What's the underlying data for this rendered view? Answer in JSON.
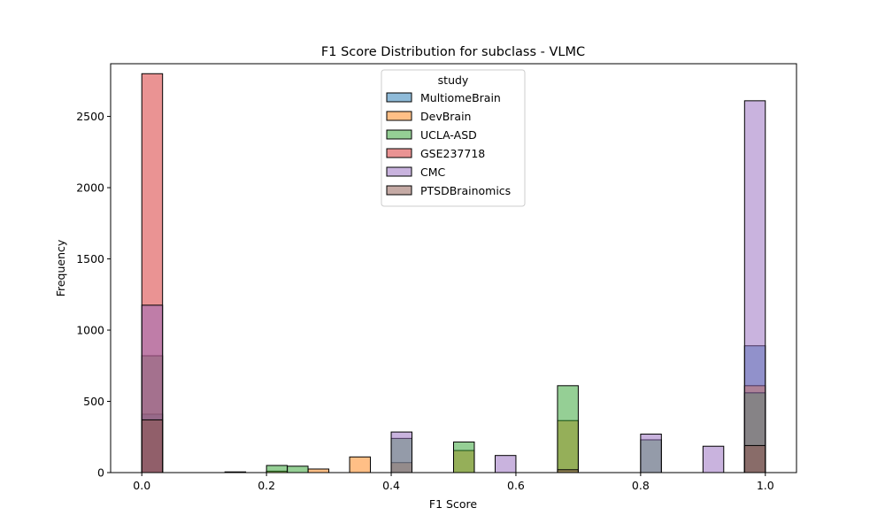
{
  "chart_data": {
    "type": "bar",
    "title": "F1 Score Distribution for subclass - VLMC",
    "xlabel": "F1 Score",
    "ylabel": "Frequency",
    "xlim": [
      -0.05,
      1.05
    ],
    "ylim": [
      0,
      2870
    ],
    "xticks": [
      0.0,
      0.2,
      0.4,
      0.6,
      0.8,
      1.0
    ],
    "xtick_labels": [
      "0.0",
      "0.2",
      "0.4",
      "0.6",
      "0.8",
      "1.0"
    ],
    "yticks": [
      0,
      500,
      1000,
      1500,
      2000,
      2500
    ],
    "ytick_labels": [
      "0",
      "500",
      "1000",
      "1500",
      "2000",
      "2500"
    ],
    "bin_width": 0.0333,
    "legend": {
      "title": "study",
      "placement": "upper-center"
    },
    "series": [
      {
        "name": "MultiomeBrain",
        "color": "#1f77b4",
        "bins": [
          {
            "x0": 0.0,
            "value": 410
          },
          {
            "x0": 0.9667,
            "value": 890
          }
        ]
      },
      {
        "name": "DevBrain",
        "color": "#ff7f0e",
        "bins": [
          {
            "x0": 0.1333,
            "value": 5
          },
          {
            "x0": 0.2,
            "value": 10
          },
          {
            "x0": 0.2667,
            "value": 25
          },
          {
            "x0": 0.3333,
            "value": 110
          },
          {
            "x0": 0.4,
            "value": 70
          },
          {
            "x0": 0.5,
            "value": 155
          },
          {
            "x0": 0.6667,
            "value": 365
          },
          {
            "x0": 0.9667,
            "value": 610
          }
        ]
      },
      {
        "name": "UCLA-ASD",
        "color": "#2ca02c",
        "bins": [
          {
            "x0": 0.0,
            "value": 820
          },
          {
            "x0": 0.2,
            "value": 50
          },
          {
            "x0": 0.2333,
            "value": 45
          },
          {
            "x0": 0.4,
            "value": 240
          },
          {
            "x0": 0.5,
            "value": 215
          },
          {
            "x0": 0.6667,
            "value": 610
          },
          {
            "x0": 0.8,
            "value": 230
          },
          {
            "x0": 0.9667,
            "value": 560
          }
        ]
      },
      {
        "name": "GSE237718",
        "color": "#d62728",
        "bins": [
          {
            "x0": 0.0,
            "value": 2800
          }
        ]
      },
      {
        "name": "CMC",
        "color": "#9467bd",
        "bins": [
          {
            "x0": 0.0,
            "value": 1175
          },
          {
            "x0": 0.4,
            "value": 285
          },
          {
            "x0": 0.5667,
            "value": 120
          },
          {
            "x0": 0.8,
            "value": 270
          },
          {
            "x0": 0.9,
            "value": 185
          },
          {
            "x0": 0.9667,
            "value": 2610
          }
        ]
      },
      {
        "name": "PTSDBrainomics",
        "color": "#8c564b",
        "bins": [
          {
            "x0": 0.0,
            "value": 370
          },
          {
            "x0": 0.6667,
            "value": 20
          },
          {
            "x0": 0.9667,
            "value": 190
          }
        ]
      }
    ]
  }
}
